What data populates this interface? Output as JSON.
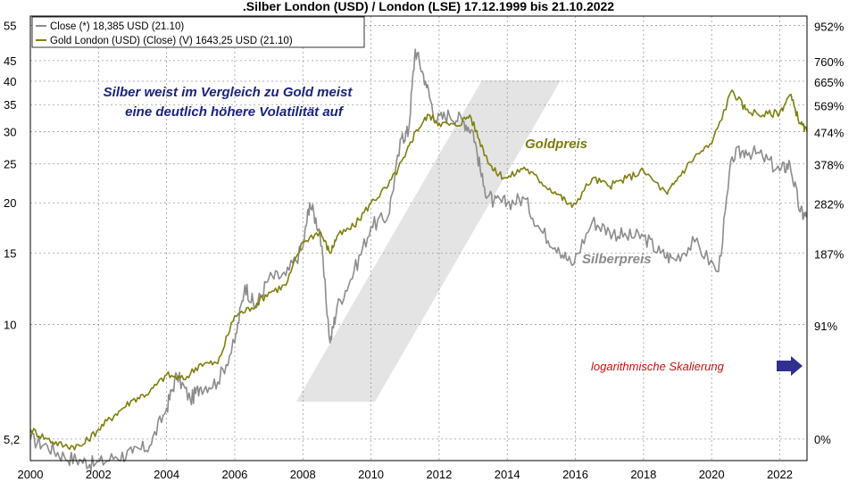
{
  "colors": {
    "silver": "#8c8c8c",
    "gold": "#7f7f0e",
    "grid": "#9a9a9a",
    "annotation": "#1a237e",
    "log_note": "#cc1010",
    "arrow": "#303090",
    "watermark": "#e4e4e4"
  },
  "chart_data": {
    "type": "line",
    "title": ".Silber London (USD) / London (LSE) 17.12.1999 bis 21.10.2022",
    "legend": {
      "placement": "top-left",
      "silver": "Close (*) 18,385 USD (21.10)",
      "gold": "Gold London (USD) (Close) (V) 1643,25 USD (21.10)"
    },
    "y_scale": "log",
    "y_left_ticks": [
      "55",
      "45",
      "40",
      "35",
      "30",
      "25",
      "20",
      "15",
      "10",
      "5,2"
    ],
    "y_left_values": [
      55,
      45,
      40,
      35,
      30,
      25,
      20,
      15,
      10,
      5.2
    ],
    "y_right_ticks": [
      "952%",
      "760%",
      "665%",
      "569%",
      "474%",
      "378%",
      "282%",
      "187%",
      "91%",
      "0%"
    ],
    "y_right_values": [
      952,
      760,
      665,
      569,
      474,
      378,
      282,
      187,
      91,
      0
    ],
    "x_ticks": [
      "2000",
      "2002",
      "2004",
      "2006",
      "2008",
      "2010",
      "2012",
      "2014",
      "2016",
      "2018",
      "2020",
      "2022"
    ],
    "x_tick_values": [
      2000,
      2002,
      2004,
      2006,
      2008,
      2010,
      2012,
      2014,
      2016,
      2018,
      2020,
      2022
    ],
    "xlim": [
      2000.0,
      2022.8
    ],
    "ylim": [
      4.6,
      58
    ],
    "grid": true,
    "annotations": {
      "headline_1": "Silber weist im Vergleich zu Gold meist",
      "headline_2": "eine deutlich höhere Volatilität auf",
      "gold_label": "Goldpreis",
      "silver_label": "Silberpreis",
      "log_note": "logarithmische Skalierung"
    },
    "series": [
      {
        "name": "Close (*) 18,385 USD (21.10)",
        "key": "silver",
        "x": [
          2000.0,
          2000.5,
          2001.0,
          2001.5,
          2001.9,
          2002.5,
          2003.0,
          2003.5,
          2004.0,
          2004.3,
          2004.7,
          2005.0,
          2005.5,
          2006.0,
          2006.3,
          2006.6,
          2007.0,
          2007.5,
          2008.0,
          2008.2,
          2008.5,
          2008.8,
          2009.0,
          2009.5,
          2010.0,
          2010.5,
          2010.9,
          2011.1,
          2011.3,
          2011.6,
          2011.9,
          2012.3,
          2012.7,
          2013.0,
          2013.3,
          2013.6,
          2014.0,
          2014.5,
          2015.0,
          2015.5,
          2015.9,
          2016.5,
          2017.0,
          2017.5,
          2018.0,
          2018.5,
          2018.9,
          2019.5,
          2020.2,
          2020.6,
          2021.0,
          2021.5,
          2022.0,
          2022.3,
          2022.6,
          2022.8
        ],
        "y": [
          5.2,
          5.0,
          4.7,
          4.6,
          4.5,
          4.7,
          4.8,
          5.0,
          6.2,
          7.5,
          6.5,
          7.0,
          7.2,
          9.0,
          12.5,
          11.0,
          13.0,
          13.2,
          15.5,
          20.0,
          17.0,
          9.0,
          11.0,
          13.5,
          17.5,
          18.5,
          29.0,
          30.0,
          48.0,
          40.0,
          32.0,
          33.0,
          32.0,
          30.0,
          22.0,
          20.0,
          20.0,
          20.5,
          17.0,
          15.5,
          14.0,
          18.0,
          17.0,
          16.5,
          16.5,
          15.0,
          14.5,
          16.0,
          13.5,
          26.0,
          27.0,
          26.0,
          24.0,
          25.0,
          19.0,
          18.4
        ]
      },
      {
        "name": "Gold London (USD) (Close) (V) 1643,25 USD (21.10)",
        "key": "gold",
        "x": [
          2000.0,
          2000.5,
          2001.0,
          2001.5,
          2002.0,
          2002.5,
          2003.0,
          2003.5,
          2004.0,
          2004.5,
          2005.0,
          2005.5,
          2006.0,
          2006.5,
          2007.0,
          2007.5,
          2008.0,
          2008.5,
          2008.8,
          2009.0,
          2009.5,
          2010.0,
          2010.5,
          2011.0,
          2011.3,
          2011.7,
          2012.0,
          2012.5,
          2012.9,
          2013.3,
          2013.6,
          2014.0,
          2014.5,
          2015.0,
          2015.5,
          2015.9,
          2016.5,
          2017.0,
          2017.5,
          2018.0,
          2018.7,
          2019.0,
          2019.5,
          2020.0,
          2020.6,
          2021.0,
          2021.5,
          2022.0,
          2022.3,
          2022.6,
          2022.8
        ],
        "y": [
          5.5,
          5.2,
          5.0,
          5.0,
          5.5,
          6.0,
          6.5,
          6.8,
          7.5,
          7.3,
          8.0,
          8.0,
          10.5,
          11.0,
          12.0,
          12.5,
          16.0,
          17.0,
          15.0,
          16.5,
          17.5,
          20.0,
          22.0,
          26.0,
          30.0,
          33.0,
          31.5,
          31.0,
          33.0,
          27.0,
          24.0,
          23.0,
          24.5,
          22.5,
          21.0,
          19.5,
          23.0,
          22.0,
          23.0,
          24.0,
          21.0,
          23.0,
          26.0,
          28.0,
          38.0,
          34.0,
          33.0,
          33.5,
          37.0,
          31.5,
          30.0
        ]
      }
    ]
  }
}
